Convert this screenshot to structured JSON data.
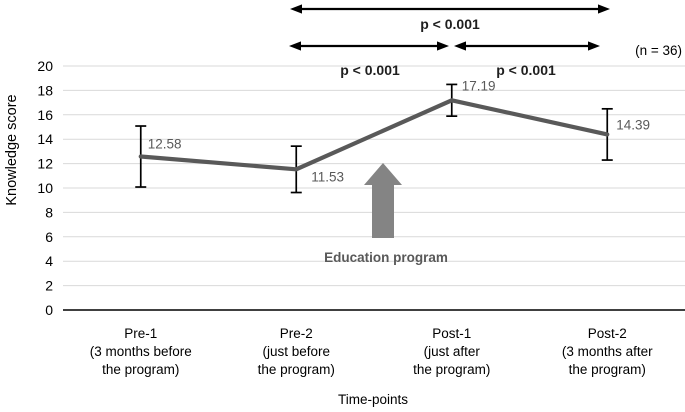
{
  "chart_data": {
    "type": "line",
    "title": "",
    "xlabel": "Time-points",
    "ylabel": "Knowledge score",
    "ylim": [
      0,
      20
    ],
    "ytick_step": 2,
    "grid": true,
    "legend": false,
    "categories": [
      {
        "name": "Pre-1",
        "lines": [
          "Pre-1",
          "(3 months before",
          "the program)"
        ]
      },
      {
        "name": "Pre-2",
        "lines": [
          "Pre-2",
          "(just before",
          "the program)"
        ]
      },
      {
        "name": "Post-1",
        "lines": [
          "Post-1",
          "(just after",
          "the program)"
        ]
      },
      {
        "name": "Post-2",
        "lines": [
          "Post-2",
          "(3 months after",
          "the program)"
        ]
      }
    ],
    "series": [
      {
        "name": "Knowledge score",
        "values": [
          12.58,
          11.53,
          17.19,
          14.39
        ],
        "errors": [
          2.5,
          1.9,
          1.3,
          2.1
        ],
        "point_labels": [
          "12.58",
          "11.53",
          "17.19",
          "14.39"
        ]
      }
    ],
    "annotations": {
      "comparisons": [
        {
          "label": "p < 0.001",
          "from": "Pre-2",
          "to": "Post-2"
        },
        {
          "label": "p < 0.001",
          "from": "Pre-2",
          "to": "Post-1"
        },
        {
          "label": "p < 0.001",
          "from": "Post-1",
          "to": "Post-2"
        }
      ],
      "sample_size": "(n = 36)",
      "event_arrow": {
        "label": "Education program",
        "between": [
          "Pre-2",
          "Post-1"
        ]
      }
    },
    "colors": {
      "line": "#595959",
      "error_bar": "#000000",
      "grid": "#d9d9d9",
      "axis": "#000000",
      "event_arrow": "#848484",
      "annotation_arrow": "#000000",
      "p_text": "#1f1f1f",
      "point_label_text": "#595959",
      "tick_text": "#000000"
    }
  }
}
